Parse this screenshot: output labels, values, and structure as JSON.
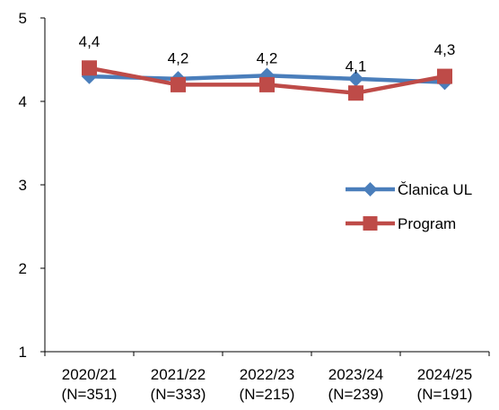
{
  "chart_data": {
    "type": "line",
    "categories": [
      [
        "2020/21",
        "(N=351)"
      ],
      [
        "2021/22",
        "(N=333)"
      ],
      [
        "2022/23",
        "(N=215)"
      ],
      [
        "2023/24",
        "(N=239)"
      ],
      [
        "2024/25",
        "(N=191)"
      ]
    ],
    "ylim": [
      1,
      5
    ],
    "yticks": [
      "1",
      "2",
      "3",
      "4",
      "5"
    ],
    "grid": false,
    "legend_position": "right",
    "series": [
      {
        "name": "Članica UL",
        "values": [
          4.3,
          4.27,
          4.31,
          4.27,
          4.23
        ],
        "color": "#4a7ebb",
        "marker": "diamond",
        "labels": [
          "",
          "",
          "",
          "",
          ""
        ]
      },
      {
        "name": "Program",
        "values": [
          4.4,
          4.2,
          4.2,
          4.1,
          4.3
        ],
        "color": "#be4b48",
        "marker": "square",
        "labels": [
          "4,4",
          "4,2",
          "4,2",
          "4,1",
          "4,3"
        ]
      }
    ],
    "title": "",
    "xlabel": "",
    "ylabel": ""
  }
}
